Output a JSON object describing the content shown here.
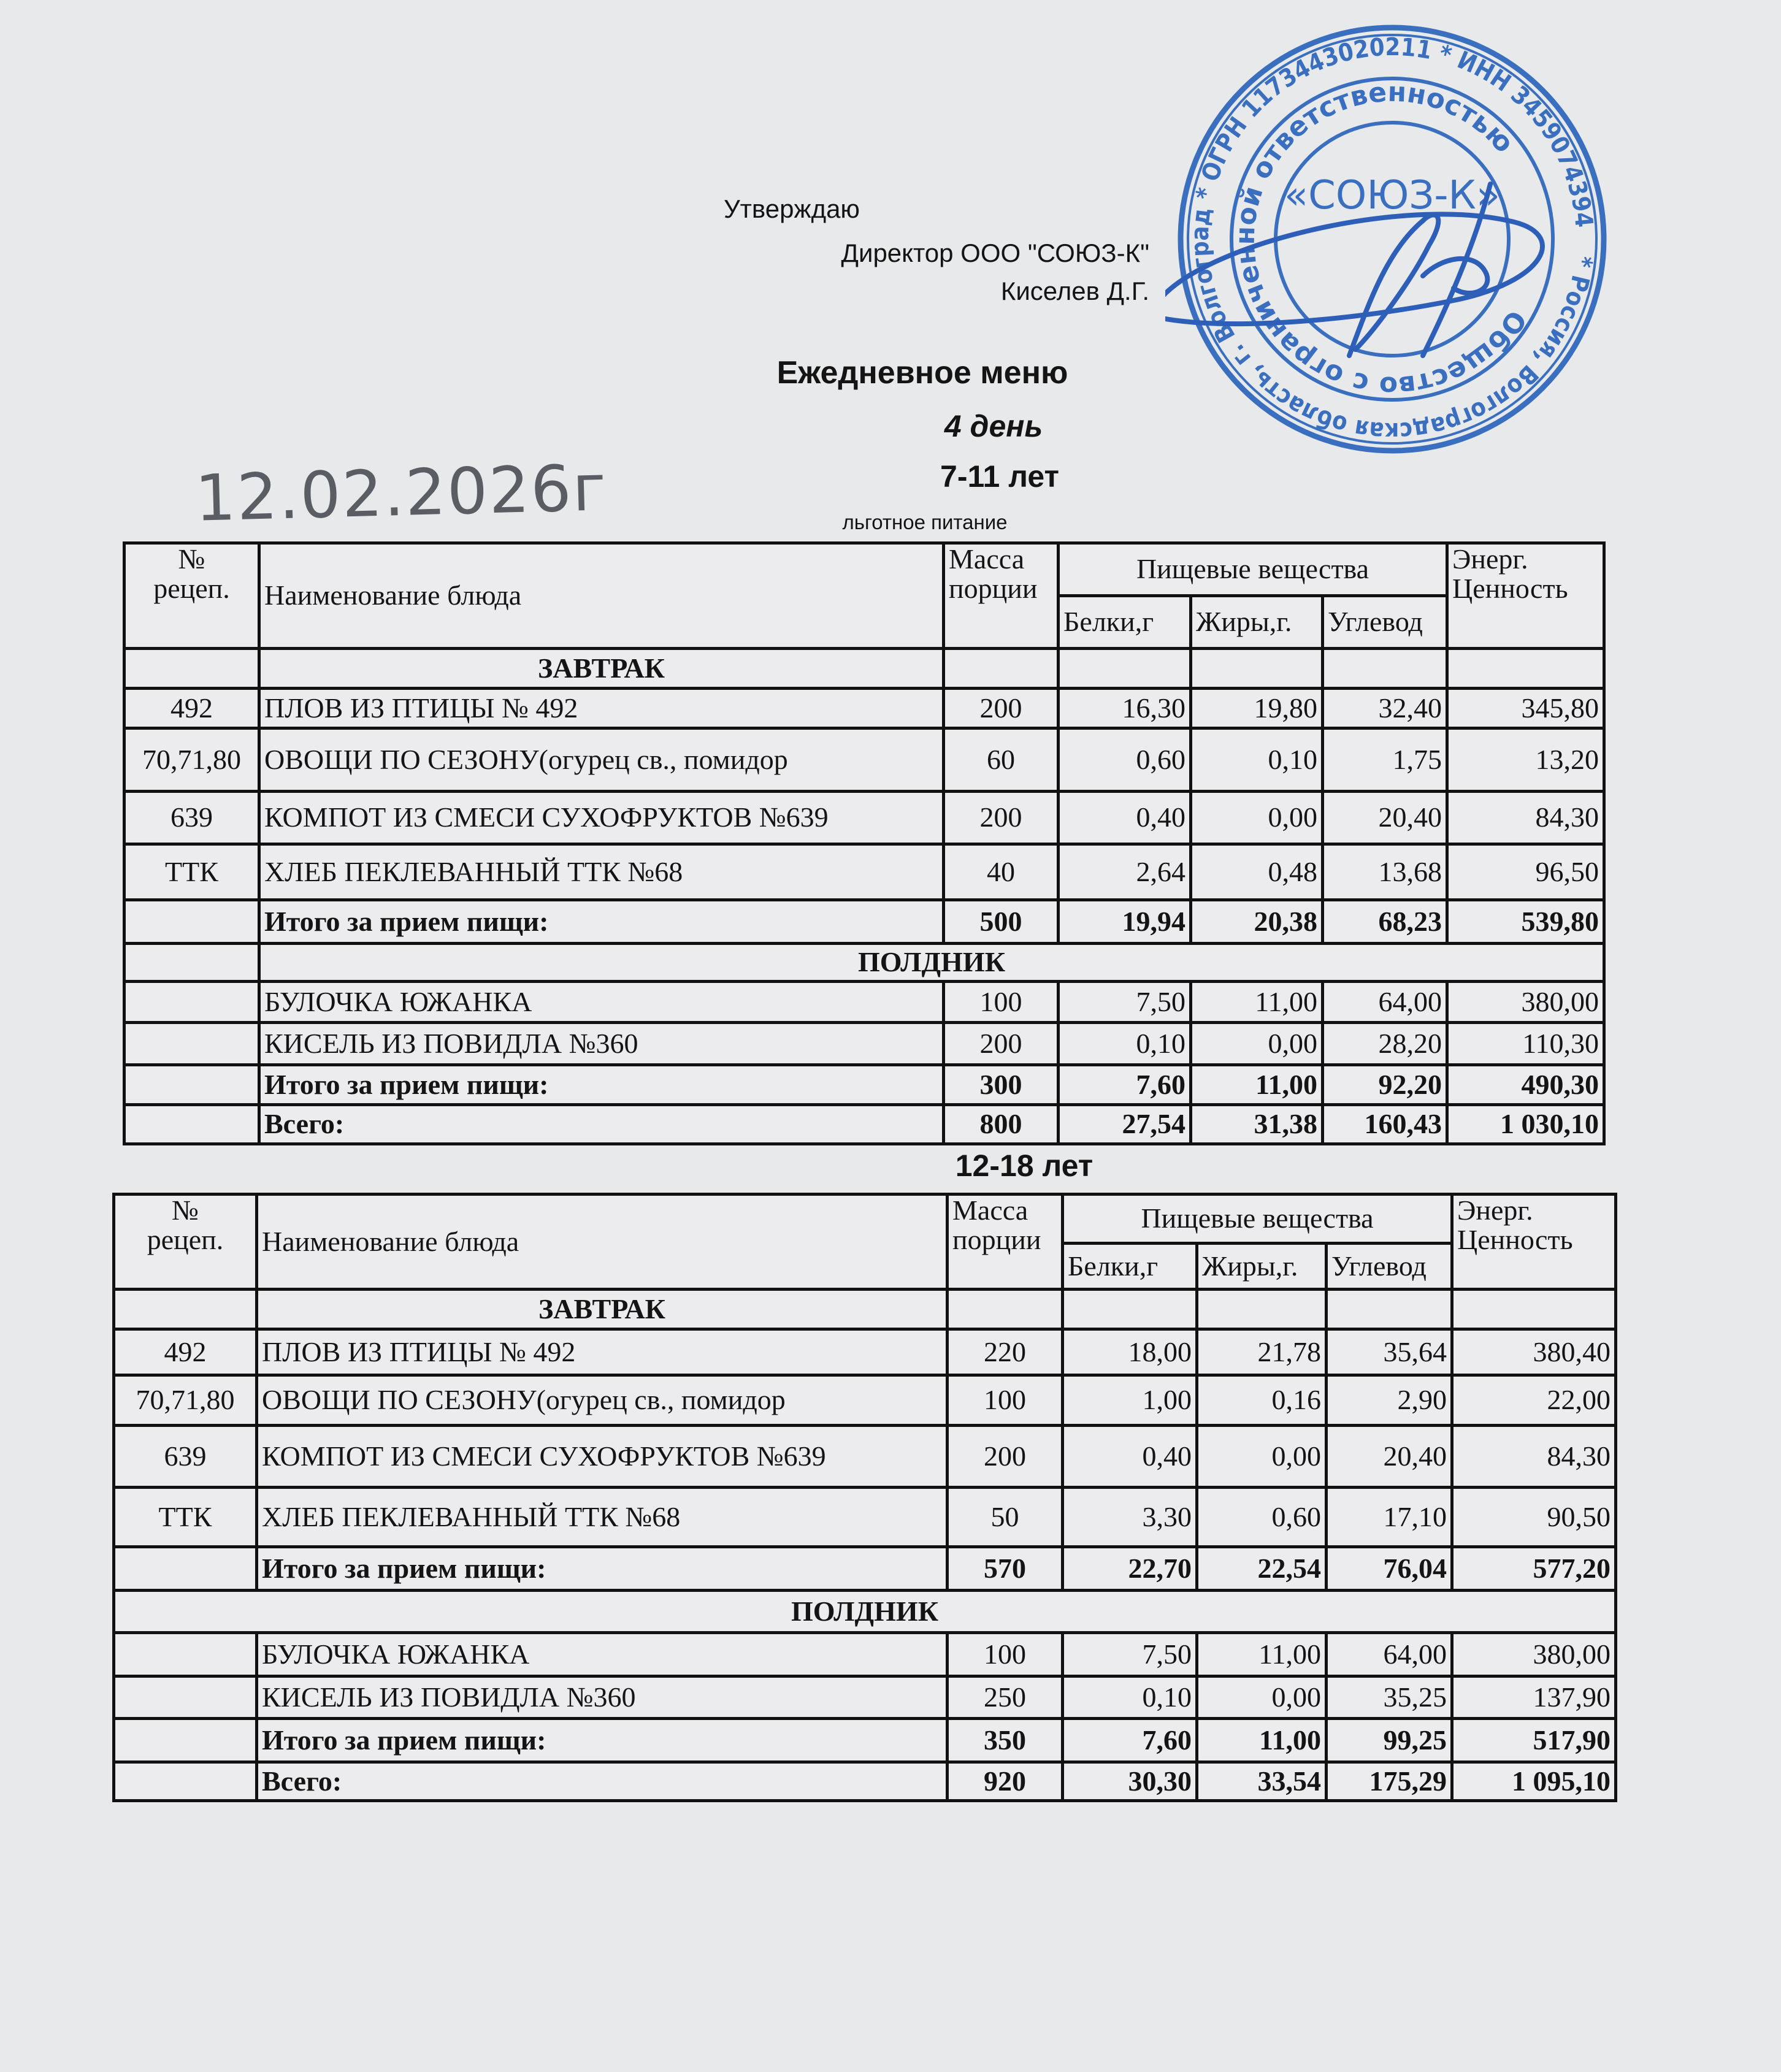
{
  "approval": {
    "approve_label": "Утверждаю",
    "director": "Директор ООО \"СОЮЗ-К\"",
    "signer": "Киселев Д.Г."
  },
  "stamp": {
    "outer_text": "* Россия, Волгоградская область, г. Волгоград * ОГРН 1173443020211 * ИНН 3459074394",
    "inner_text": "Общество с ограниченной ответственностью",
    "center_text": "«СОЮЗ-К»",
    "color": "#3a6fc0"
  },
  "header": {
    "title": "Ежедневное меню",
    "day": "4 день",
    "age_group_1": "7-11 лет",
    "subsidy": "льготное питание",
    "handwritten_date": "12.02.2026г",
    "age_group_2": "12-18 лет"
  },
  "columns": {
    "recipe_no_top": "№",
    "recipe_no_bottom": "рецеп.",
    "dish_name": "Наименование блюда",
    "mass_top": "Масса",
    "mass_bottom": "порции",
    "nutrients": "Пищевые вещества",
    "protein": "Белки,г",
    "fat": "Жиры,г.",
    "carbs": "Углевод",
    "energy_top": "Энерг.",
    "energy_bottom": "Ценность"
  },
  "tables": [
    {
      "rows": [
        {
          "type": "section",
          "label": "ЗАВТРАК"
        },
        {
          "type": "item",
          "recipe": "492",
          "name": "ПЛОВ ИЗ ПТИЦЫ № 492",
          "mass": "200",
          "protein": "16,30",
          "fat": "19,80",
          "carbs": "32,40",
          "energy": "345,80"
        },
        {
          "type": "item",
          "recipe": "70,71,80",
          "name": "ОВОЩИ ПО СЕЗОНУ(огурец св., помидор",
          "mass": "60",
          "protein": "0,60",
          "fat": "0,10",
          "carbs": "1,75",
          "energy": "13,20"
        },
        {
          "type": "item",
          "recipe": "639",
          "name": "КОМПОТ ИЗ СМЕСИ СУХОФРУКТОВ №639",
          "mass": "200",
          "protein": "0,40",
          "fat": "0,00",
          "carbs": "20,40",
          "energy": "84,30"
        },
        {
          "type": "item",
          "recipe": "ТТК",
          "name": "ХЛЕБ ПЕКЛЕВАННЫЙ ТТК №68",
          "mass": "40",
          "protein": "2,64",
          "fat": "0,48",
          "carbs": "13,68",
          "energy": "96,50"
        },
        {
          "type": "total",
          "name": "Итого за прием пищи:",
          "mass": "500",
          "protein": "19,94",
          "fat": "20,38",
          "carbs": "68,23",
          "energy": "539,80"
        },
        {
          "type": "section",
          "label": "ПОЛДНИК"
        },
        {
          "type": "item",
          "recipe": "",
          "name": "БУЛОЧКА ЮЖАНКА",
          "mass": "100",
          "protein": "7,50",
          "fat": "11,00",
          "carbs": "64,00",
          "energy": "380,00"
        },
        {
          "type": "item",
          "recipe": "",
          "name": "КИСЕЛЬ ИЗ ПОВИДЛА №360",
          "mass": "200",
          "protein": "0,10",
          "fat": "0,00",
          "carbs": "28,20",
          "energy": "110,30"
        },
        {
          "type": "total",
          "name": "Итого за прием пищи:",
          "mass": "300",
          "protein": "7,60",
          "fat": "11,00",
          "carbs": "92,20",
          "energy": "490,30"
        },
        {
          "type": "total",
          "name": "Всего:",
          "mass": "800",
          "protein": "27,54",
          "fat": "31,38",
          "carbs": "160,43",
          "energy": "1 030,10"
        }
      ]
    },
    {
      "rows": [
        {
          "type": "section",
          "label": "ЗАВТРАК"
        },
        {
          "type": "item",
          "recipe": "492",
          "name": "ПЛОВ ИЗ ПТИЦЫ № 492",
          "mass": "220",
          "protein": "18,00",
          "fat": "21,78",
          "carbs": "35,64",
          "energy": "380,40"
        },
        {
          "type": "item",
          "recipe": "70,71,80",
          "name": "ОВОЩИ ПО СЕЗОНУ(огурец св., помидор",
          "mass": "100",
          "protein": "1,00",
          "fat": "0,16",
          "carbs": "2,90",
          "energy": "22,00"
        },
        {
          "type": "item",
          "recipe": "639",
          "name": "КОМПОТ ИЗ СМЕСИ СУХОФРУКТОВ №639",
          "mass": "200",
          "protein": "0,40",
          "fat": "0,00",
          "carbs": "20,40",
          "energy": "84,30"
        },
        {
          "type": "item",
          "recipe": "ТТК",
          "name": "ХЛЕБ ПЕКЛЕВАННЫЙ ТТК №68",
          "mass": "50",
          "protein": "3,30",
          "fat": "0,60",
          "carbs": "17,10",
          "energy": "90,50"
        },
        {
          "type": "total",
          "name": "Итого за прием пищи:",
          "mass": "570",
          "protein": "22,70",
          "fat": "22,54",
          "carbs": "76,04",
          "energy": "577,20"
        },
        {
          "type": "section_full",
          "label": "ПОЛДНИК"
        },
        {
          "type": "item",
          "recipe": "",
          "name": "БУЛОЧКА ЮЖАНКА",
          "mass": "100",
          "protein": "7,50",
          "fat": "11,00",
          "carbs": "64,00",
          "energy": "380,00"
        },
        {
          "type": "item",
          "recipe": "",
          "name": "КИСЕЛЬ ИЗ ПОВИДЛА №360",
          "mass": "250",
          "protein": "0,10",
          "fat": "0,00",
          "carbs": "35,25",
          "energy": "137,90"
        },
        {
          "type": "total",
          "name": "Итого за прием пищи:",
          "mass": "350",
          "protein": "7,60",
          "fat": "11,00",
          "carbs": "99,25",
          "energy": "517,90"
        },
        {
          "type": "total",
          "name": "Всего:",
          "mass": "920",
          "protein": "30,30",
          "fat": "33,54",
          "carbs": "175,29",
          "energy": "1 095,10"
        }
      ]
    }
  ]
}
